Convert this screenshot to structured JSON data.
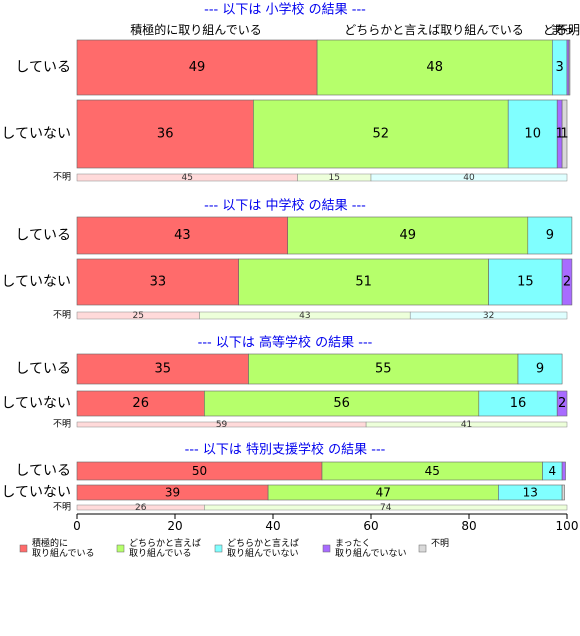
{
  "chart_data": {
    "type": "bar",
    "stacked": true,
    "orientation": "horizontal",
    "xlim": [
      0,
      100
    ],
    "x_ticks": [
      0,
      20,
      40,
      60,
      80,
      100
    ],
    "grid": false,
    "legend_placement": "bottom",
    "top_labels": [
      "積極的に取り組んでいる",
      "どちらかと言えば取り組んでいる",
      "どち",
      "まっ",
      "不明"
    ],
    "colors": {
      "積極的に取り組んでいる": "#ff6b6b",
      "どちらかと言えば取り組んでいる": "#b6ff6b",
      "どちらかと言えば取り組んでいない": "#80ffff",
      "まったく取り組んでいない": "#a86bff",
      "不明": "#d9d9d9"
    },
    "panels": [
      {
        "title": "--- 以下は 小学校 の結果 ---",
        "categories": [
          "している",
          "していない"
        ],
        "series": [
          {
            "name": "積極的に取り組んでいる",
            "values": [
              49,
              36
            ]
          },
          {
            "name": "どちらかと言えば取り組んでいる",
            "values": [
              48,
              52
            ]
          },
          {
            "name": "どちらかと言えば取り組んでいない",
            "values": [
              3,
              10
            ]
          },
          {
            "name": "まったく取り組んでいない",
            "values": [
              0.4,
              1
            ]
          },
          {
            "name": "不明",
            "values": [
              0.2,
              1
            ]
          }
        ],
        "value_labels": [
          [
            "49",
            "48",
            "3",
            "",
            ""
          ],
          [
            "36",
            "52",
            "10",
            "1",
            "1"
          ]
        ],
        "unknown_row": {
          "label": "不明",
          "values": [
            45,
            15,
            40
          ],
          "value_labels": [
            "45",
            "15",
            "40"
          ]
        }
      },
      {
        "title": "--- 以下は 中学校 の結果 ---",
        "categories": [
          "している",
          "していない"
        ],
        "series": [
          {
            "name": "積極的に取り組んでいる",
            "values": [
              43,
              33
            ]
          },
          {
            "name": "どちらかと言えば取り組んでいる",
            "values": [
              49,
              51
            ]
          },
          {
            "name": "どちらかと言えば取り組んでいない",
            "values": [
              9,
              15
            ]
          },
          {
            "name": "まったく取り組んでいない",
            "values": [
              0,
              2
            ]
          },
          {
            "name": "不明",
            "values": [
              0,
              0
            ]
          }
        ],
        "value_labels": [
          [
            "43",
            "49",
            "9",
            "",
            ""
          ],
          [
            "33",
            "51",
            "15",
            "2",
            ""
          ]
        ],
        "unknown_row": {
          "label": "不明",
          "values": [
            25,
            43,
            32
          ],
          "value_labels": [
            "25",
            "43",
            "32"
          ]
        }
      },
      {
        "title": "--- 以下は 高等学校 の結果 ---",
        "categories": [
          "している",
          "していない"
        ],
        "series": [
          {
            "name": "積極的に取り組んでいる",
            "values": [
              35,
              26
            ]
          },
          {
            "name": "どちらかと言えば取り組んでいる",
            "values": [
              55,
              56
            ]
          },
          {
            "name": "どちらかと言えば取り組んでいない",
            "values": [
              9,
              16
            ]
          },
          {
            "name": "まったく取り組んでいない",
            "values": [
              0,
              2
            ]
          },
          {
            "name": "不明",
            "values": [
              0,
              0
            ]
          }
        ],
        "value_labels": [
          [
            "35",
            "55",
            "9",
            "",
            ""
          ],
          [
            "26",
            "56",
            "16",
            "2",
            ""
          ]
        ],
        "unknown_row": {
          "label": "不明",
          "values": [
            59,
            41
          ],
          "value_labels": [
            "59",
            "41"
          ]
        }
      },
      {
        "title": "--- 以下は 特別支援学校 の結果 ---",
        "categories": [
          "している",
          "していない"
        ],
        "series": [
          {
            "name": "積極的に取り組んでいる",
            "values": [
              50,
              39
            ]
          },
          {
            "name": "どちらかと言えば取り組んでいる",
            "values": [
              45,
              47
            ]
          },
          {
            "name": "どちらかと言えば取り組んでいない",
            "values": [
              4,
              13
            ]
          },
          {
            "name": "まったく取り組んでいない",
            "values": [
              0.7,
              0
            ]
          },
          {
            "name": "不明",
            "values": [
              0,
              0.5
            ]
          }
        ],
        "value_labels": [
          [
            "50",
            "45",
            "4",
            "",
            ""
          ],
          [
            "39",
            "47",
            "13",
            "",
            ""
          ]
        ],
        "unknown_row": {
          "label": "不明",
          "values": [
            26,
            74
          ],
          "value_labels": [
            "26",
            "74"
          ]
        }
      }
    ],
    "legend": [
      {
        "lines": [
          "積極的に",
          "取り組んでいる"
        ],
        "color_key": "積極的に取り組んでいる"
      },
      {
        "lines": [
          "どちらかと言えば",
          "取り組んでいる"
        ],
        "color_key": "どちらかと言えば取り組んでいる"
      },
      {
        "lines": [
          "どちらかと言えば",
          "取り組んでいない"
        ],
        "color_key": "どちらかと言えば取り組んでいない"
      },
      {
        "lines": [
          "まったく",
          "取り組んでいない"
        ],
        "color_key": "まったく取り組んでいない"
      },
      {
        "lines": [
          "不明"
        ],
        "color_key": "不明"
      }
    ]
  }
}
